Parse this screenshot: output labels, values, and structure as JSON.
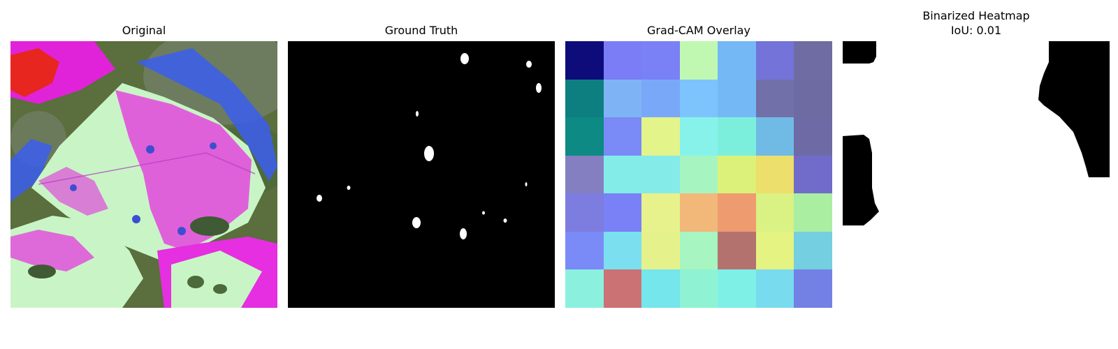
{
  "panels": [
    {
      "title": "Original"
    },
    {
      "title": "Ground Truth"
    },
    {
      "title": "Grad-CAM Overlay"
    },
    {
      "title_line_1": "Binarized Heatmap",
      "title_line_2": "IoU: 0.01"
    }
  ],
  "gradcam_grid_colors": [
    [
      "#0e0c7b",
      "#7a7df5",
      "#7a80f6",
      "#c1f8b1",
      "#74b8f5",
      "#7373da",
      "#6f6ca3"
    ],
    [
      "#0e7f81",
      "#7eb4f6",
      "#7aa8f9",
      "#7cc4fb",
      "#74b9f5",
      "#7270a8",
      "#6e6aa2"
    ],
    [
      "#0c8a83",
      "#7a8af6",
      "#e3f48a",
      "#87f2ea",
      "#7cefdc",
      "#70bbe6",
      "#6e6aa5"
    ],
    [
      "#847fc1",
      "#84ece8",
      "#84ebe9",
      "#a6f5c0",
      "#dcf17a",
      "#ecdf6c",
      "#716cc9"
    ],
    [
      "#7c7ddf",
      "#7a80f6",
      "#e7f28d",
      "#f1b87a",
      "#ee9b70",
      "#d9f283",
      "#a9eea1"
    ],
    [
      "#7a8af6",
      "#7bdff0",
      "#e5f28b",
      "#a7f5c0",
      "#b4726f",
      "#e4f382",
      "#74cfe0"
    ],
    [
      "#8bf0de",
      "#cb7274",
      "#74e6ec",
      "#8ff3d3",
      "#7ef0e6",
      "#78dbee",
      "#7381e4"
    ]
  ]
}
